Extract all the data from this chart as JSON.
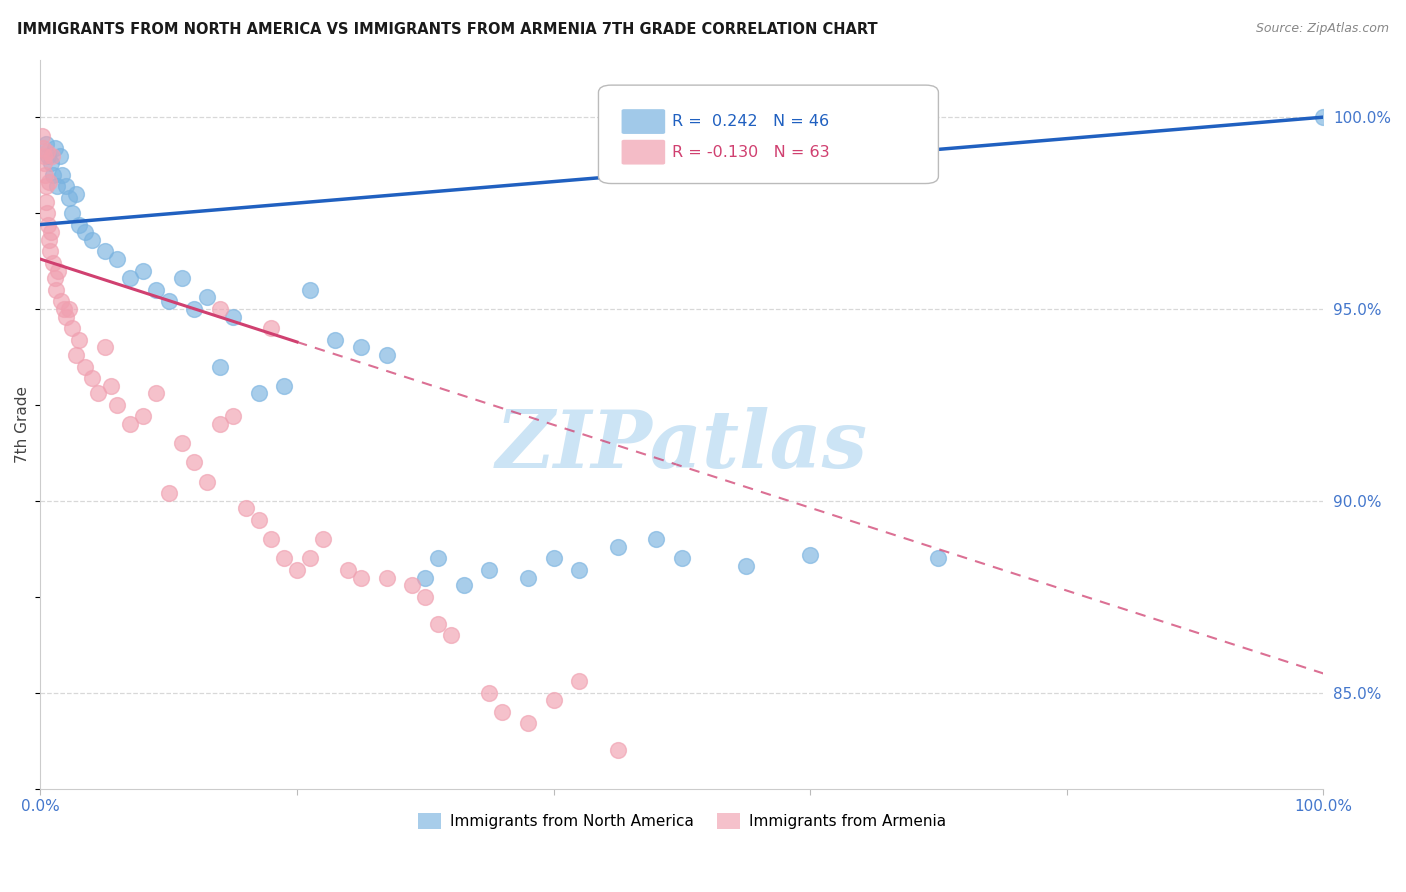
{
  "title": "IMMIGRANTS FROM NORTH AMERICA VS IMMIGRANTS FROM ARMENIA 7TH GRADE CORRELATION CHART",
  "source": "Source: ZipAtlas.com",
  "ylabel": "7th Grade",
  "xlim": [
    0,
    100
  ],
  "ylim": [
    82.5,
    101.5
  ],
  "ytick_right_labels": [
    "100.0%",
    "95.0%",
    "90.0%",
    "85.0%"
  ],
  "ytick_right_values": [
    100,
    95,
    90,
    85
  ],
  "legend_r_blue": "R =  0.242",
  "legend_n_blue": "N = 46",
  "legend_r_pink": "R = -0.130",
  "legend_n_pink": "N = 63",
  "blue_color": "#7ab3e0",
  "pink_color": "#f0a0b0",
  "blue_line_color": "#2060c0",
  "pink_line_color": "#d04070",
  "watermark_text": "ZIPatlas",
  "watermark_color": "#cce4f5",
  "grid_color": "#d8d8d8",
  "blue_trend_x0": 0,
  "blue_trend_y0": 97.2,
  "blue_trend_x1": 100,
  "blue_trend_y1": 100.0,
  "pink_trend_x0": 0,
  "pink_trend_y0": 96.3,
  "pink_trend_x1": 100,
  "pink_trend_y1": 85.5,
  "pink_solid_end_x": 20,
  "north_america_x": [
    0.4,
    0.6,
    0.8,
    1.0,
    1.1,
    1.3,
    1.5,
    1.7,
    2.0,
    2.2,
    2.5,
    2.8,
    3.0,
    3.5,
    4.0,
    5.0,
    6.0,
    7.0,
    8.0,
    9.0,
    10.0,
    11.0,
    12.0,
    13.0,
    14.0,
    15.0,
    17.0,
    19.0,
    21.0,
    23.0,
    25.0,
    27.0,
    30.0,
    31.0,
    33.0,
    35.0,
    38.0,
    40.0,
    42.0,
    45.0,
    48.0,
    50.0,
    55.0,
    60.0,
    70.0,
    100.0
  ],
  "north_america_y": [
    99.3,
    99.0,
    98.8,
    98.5,
    99.2,
    98.2,
    99.0,
    98.5,
    98.2,
    97.9,
    97.5,
    98.0,
    97.2,
    97.0,
    96.8,
    96.5,
    96.3,
    95.8,
    96.0,
    95.5,
    95.2,
    95.8,
    95.0,
    95.3,
    93.5,
    94.8,
    92.8,
    93.0,
    95.5,
    94.2,
    94.0,
    93.8,
    88.0,
    88.5,
    87.8,
    88.2,
    88.0,
    88.5,
    88.2,
    88.8,
    89.0,
    88.5,
    88.3,
    88.6,
    88.5,
    100.0
  ],
  "armenia_x": [
    0.15,
    0.2,
    0.25,
    0.3,
    0.35,
    0.4,
    0.45,
    0.5,
    0.55,
    0.6,
    0.65,
    0.7,
    0.75,
    0.8,
    0.9,
    1.0,
    1.1,
    1.2,
    1.4,
    1.6,
    1.8,
    2.0,
    2.2,
    2.5,
    2.8,
    3.0,
    3.5,
    4.0,
    4.5,
    5.0,
    5.5,
    6.0,
    7.0,
    8.0,
    9.0,
    10.0,
    11.0,
    12.0,
    13.0,
    14.0,
    15.0,
    16.0,
    17.0,
    18.0,
    19.0,
    20.0,
    21.0,
    22.0,
    24.0,
    25.0,
    27.0,
    29.0,
    30.0,
    31.0,
    32.0,
    35.0,
    36.0,
    38.0,
    40.0,
    42.0,
    45.0,
    18.0,
    14.0
  ],
  "armenia_y": [
    99.5,
    99.2,
    98.8,
    99.0,
    98.5,
    98.2,
    97.8,
    99.1,
    97.5,
    97.2,
    96.8,
    98.3,
    96.5,
    97.0,
    99.0,
    96.2,
    95.8,
    95.5,
    96.0,
    95.2,
    95.0,
    94.8,
    95.0,
    94.5,
    93.8,
    94.2,
    93.5,
    93.2,
    92.8,
    94.0,
    93.0,
    92.5,
    92.0,
    92.2,
    92.8,
    90.2,
    91.5,
    91.0,
    90.5,
    92.0,
    92.2,
    89.8,
    89.5,
    89.0,
    88.5,
    88.2,
    88.5,
    89.0,
    88.2,
    88.0,
    88.0,
    87.8,
    87.5,
    86.8,
    86.5,
    85.0,
    84.5,
    84.2,
    84.8,
    85.3,
    83.5,
    94.5,
    95.0
  ]
}
